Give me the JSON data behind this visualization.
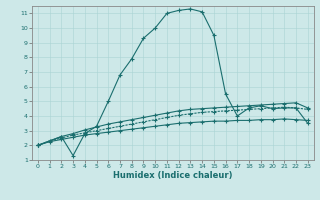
{
  "xlabel": "Humidex (Indice chaleur)",
  "bg_color": "#cde8e8",
  "line_color": "#1a6e6e",
  "xlim": [
    -0.5,
    23.5
  ],
  "ylim": [
    1,
    11.5
  ],
  "xticks": [
    0,
    1,
    2,
    3,
    4,
    5,
    6,
    7,
    8,
    9,
    10,
    11,
    12,
    13,
    14,
    15,
    16,
    17,
    18,
    19,
    20,
    21,
    22,
    23
  ],
  "yticks": [
    1,
    2,
    3,
    4,
    5,
    6,
    7,
    8,
    9,
    10,
    11
  ],
  "line1_x": [
    0,
    1,
    2,
    3,
    4,
    5,
    6,
    7,
    8,
    9,
    10,
    11,
    12,
    13,
    14,
    15,
    16,
    17,
    18,
    19,
    20,
    21,
    22,
    23
  ],
  "line1_y": [
    2.0,
    2.25,
    2.4,
    2.55,
    2.7,
    2.8,
    2.9,
    3.0,
    3.1,
    3.2,
    3.3,
    3.4,
    3.5,
    3.55,
    3.6,
    3.65,
    3.65,
    3.7,
    3.7,
    3.75,
    3.75,
    3.8,
    3.75,
    3.7
  ],
  "line2_x": [
    0,
    1,
    2,
    3,
    4,
    5,
    6,
    7,
    8,
    9,
    10,
    11,
    12,
    13,
    14,
    15,
    16,
    17,
    18,
    19,
    20,
    21,
    22,
    23
  ],
  "line2_y": [
    2.0,
    2.3,
    2.5,
    2.7,
    2.85,
    3.0,
    3.15,
    3.3,
    3.45,
    3.6,
    3.75,
    3.9,
    4.05,
    4.15,
    4.25,
    4.3,
    4.35,
    4.4,
    4.45,
    4.5,
    4.55,
    4.6,
    4.55,
    4.45
  ],
  "line3_x": [
    0,
    2,
    3,
    4,
    5,
    6,
    7,
    8,
    9,
    10,
    11,
    12,
    13,
    14,
    15,
    16,
    17,
    18,
    19,
    20,
    21,
    22,
    23
  ],
  "line3_y": [
    2.0,
    2.6,
    2.8,
    3.05,
    3.25,
    3.45,
    3.6,
    3.75,
    3.9,
    4.05,
    4.2,
    4.35,
    4.45,
    4.5,
    4.55,
    4.6,
    4.65,
    4.7,
    4.75,
    4.8,
    4.85,
    4.9,
    4.55
  ],
  "line4_x": [
    0,
    2,
    3,
    4,
    5,
    6,
    7,
    8,
    9,
    10,
    11,
    12,
    13,
    14,
    15,
    16,
    17,
    18,
    19,
    20,
    21,
    22,
    23
  ],
  "line4_y": [
    2.0,
    2.6,
    1.3,
    2.8,
    3.3,
    5.0,
    6.8,
    7.9,
    9.3,
    10.0,
    11.0,
    11.2,
    11.3,
    11.1,
    9.5,
    5.5,
    4.0,
    4.55,
    4.7,
    4.5,
    4.55,
    4.55,
    3.5
  ]
}
